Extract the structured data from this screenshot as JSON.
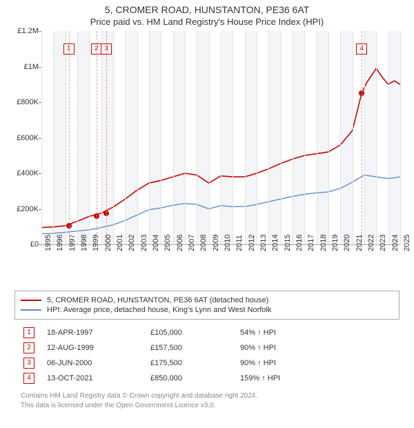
{
  "title": "5, CROMER ROAD, HUNSTANTON, PE36 6AT",
  "subtitle": "Price paid vs. HM Land Registry's House Price Index (HPI)",
  "chart": {
    "type": "line",
    "background_color": "#ffffff",
    "alt_band_color": "#f3f5f8",
    "grid_color": "#e2e2e2",
    "text_color": "#333333",
    "y": {
      "min": 0,
      "max": 1200000,
      "ticks": [
        0,
        200000,
        400000,
        600000,
        800000,
        1000000,
        1200000
      ],
      "tick_labels": [
        "£0",
        "£200K",
        "£400K",
        "£600K",
        "£800K",
        "£1M",
        "£1.2M"
      ],
      "label_fontsize": 11
    },
    "x": {
      "years": [
        1995,
        1996,
        1997,
        1998,
        1999,
        2000,
        2001,
        2002,
        2003,
        2004,
        2005,
        2006,
        2007,
        2008,
        2009,
        2010,
        2011,
        2012,
        2013,
        2014,
        2015,
        2016,
        2017,
        2018,
        2019,
        2020,
        2021,
        2022,
        2023,
        2024,
        2025
      ],
      "label_fontsize": 11
    },
    "series": [
      {
        "name": "5, CROMER ROAD, HUNSTANTON, PE36 6AT (detached house)",
        "color": "#cc0000",
        "line_width": 1.6,
        "data": [
          [
            1995,
            95000
          ],
          [
            1996,
            98000
          ],
          [
            1997,
            105000
          ],
          [
            1998,
            130000
          ],
          [
            1999,
            157500
          ],
          [
            2000,
            175500
          ],
          [
            2001,
            210000
          ],
          [
            2002,
            255000
          ],
          [
            2003,
            305000
          ],
          [
            2004,
            345000
          ],
          [
            2005,
            360000
          ],
          [
            2006,
            380000
          ],
          [
            2007,
            400000
          ],
          [
            2008,
            390000
          ],
          [
            2009,
            345000
          ],
          [
            2010,
            385000
          ],
          [
            2011,
            380000
          ],
          [
            2012,
            380000
          ],
          [
            2013,
            400000
          ],
          [
            2014,
            425000
          ],
          [
            2015,
            455000
          ],
          [
            2016,
            480000
          ],
          [
            2017,
            500000
          ],
          [
            2018,
            510000
          ],
          [
            2019,
            520000
          ],
          [
            2020,
            560000
          ],
          [
            2021,
            640000
          ],
          [
            2021.78,
            850000
          ],
          [
            2022.2,
            910000
          ],
          [
            2023,
            990000
          ],
          [
            2023.5,
            940000
          ],
          [
            2024,
            900000
          ],
          [
            2024.5,
            920000
          ],
          [
            2025,
            900000
          ]
        ]
      },
      {
        "name": "HPI: Average price, detached house, King's Lynn and West Norfolk",
        "color": "#5b8bd0",
        "line_width": 1.4,
        "data": [
          [
            1995,
            60000
          ],
          [
            1996,
            62000
          ],
          [
            1997,
            68000
          ],
          [
            1998,
            75000
          ],
          [
            1999,
            82000
          ],
          [
            2000,
            95000
          ],
          [
            2001,
            110000
          ],
          [
            2002,
            135000
          ],
          [
            2003,
            165000
          ],
          [
            2004,
            195000
          ],
          [
            2005,
            205000
          ],
          [
            2006,
            220000
          ],
          [
            2007,
            230000
          ],
          [
            2008,
            225000
          ],
          [
            2009,
            200000
          ],
          [
            2010,
            218000
          ],
          [
            2011,
            212000
          ],
          [
            2012,
            213000
          ],
          [
            2013,
            225000
          ],
          [
            2014,
            240000
          ],
          [
            2015,
            255000
          ],
          [
            2016,
            270000
          ],
          [
            2017,
            282000
          ],
          [
            2018,
            290000
          ],
          [
            2019,
            295000
          ],
          [
            2020,
            315000
          ],
          [
            2021,
            350000
          ],
          [
            2022,
            390000
          ],
          [
            2023,
            380000
          ],
          [
            2024,
            370000
          ],
          [
            2025,
            380000
          ]
        ]
      }
    ],
    "sale_markers": [
      {
        "num": "1",
        "x": 1997.29,
        "dashed_color": "#e29aa0"
      },
      {
        "num": "2",
        "x": 1999.61,
        "dashed_color": "#e29aa0"
      },
      {
        "num": "3",
        "x": 2000.43,
        "dashed_color": "#e29aa0"
      },
      {
        "num": "4",
        "x": 2021.78,
        "dashed_color": "#e29aa0"
      }
    ],
    "sale_points": [
      {
        "x": 1997.29,
        "y": 105000,
        "color": "#cc0000"
      },
      {
        "x": 1999.61,
        "y": 157500,
        "color": "#cc0000"
      },
      {
        "x": 2000.43,
        "y": 175500,
        "color": "#cc0000"
      },
      {
        "x": 2021.78,
        "y": 850000,
        "color": "#cc0000"
      }
    ]
  },
  "legend": [
    {
      "color": "#cc0000",
      "label": "5, CROMER ROAD, HUNSTANTON, PE36 6AT (detached house)"
    },
    {
      "color": "#5b8bd0",
      "label": "HPI: Average price, detached house, King's Lynn and West Norfolk"
    }
  ],
  "sales": [
    {
      "num": "1",
      "date": "18-APR-1997",
      "price": "£105,000",
      "pct": "54% ↑ HPI"
    },
    {
      "num": "2",
      "date": "12-AUG-1999",
      "price": "£157,500",
      "pct": "90% ↑ HPI"
    },
    {
      "num": "3",
      "date": "06-JUN-2000",
      "price": "£175,500",
      "pct": "90% ↑ HPI"
    },
    {
      "num": "4",
      "date": "13-OCT-2021",
      "price": "£850,000",
      "pct": "159% ↑ HPI"
    }
  ],
  "footer_line1": "Contains HM Land Registry data © Crown copyright and database right 2024.",
  "footer_line2": "This data is licensed under the Open Government Licence v3.0."
}
